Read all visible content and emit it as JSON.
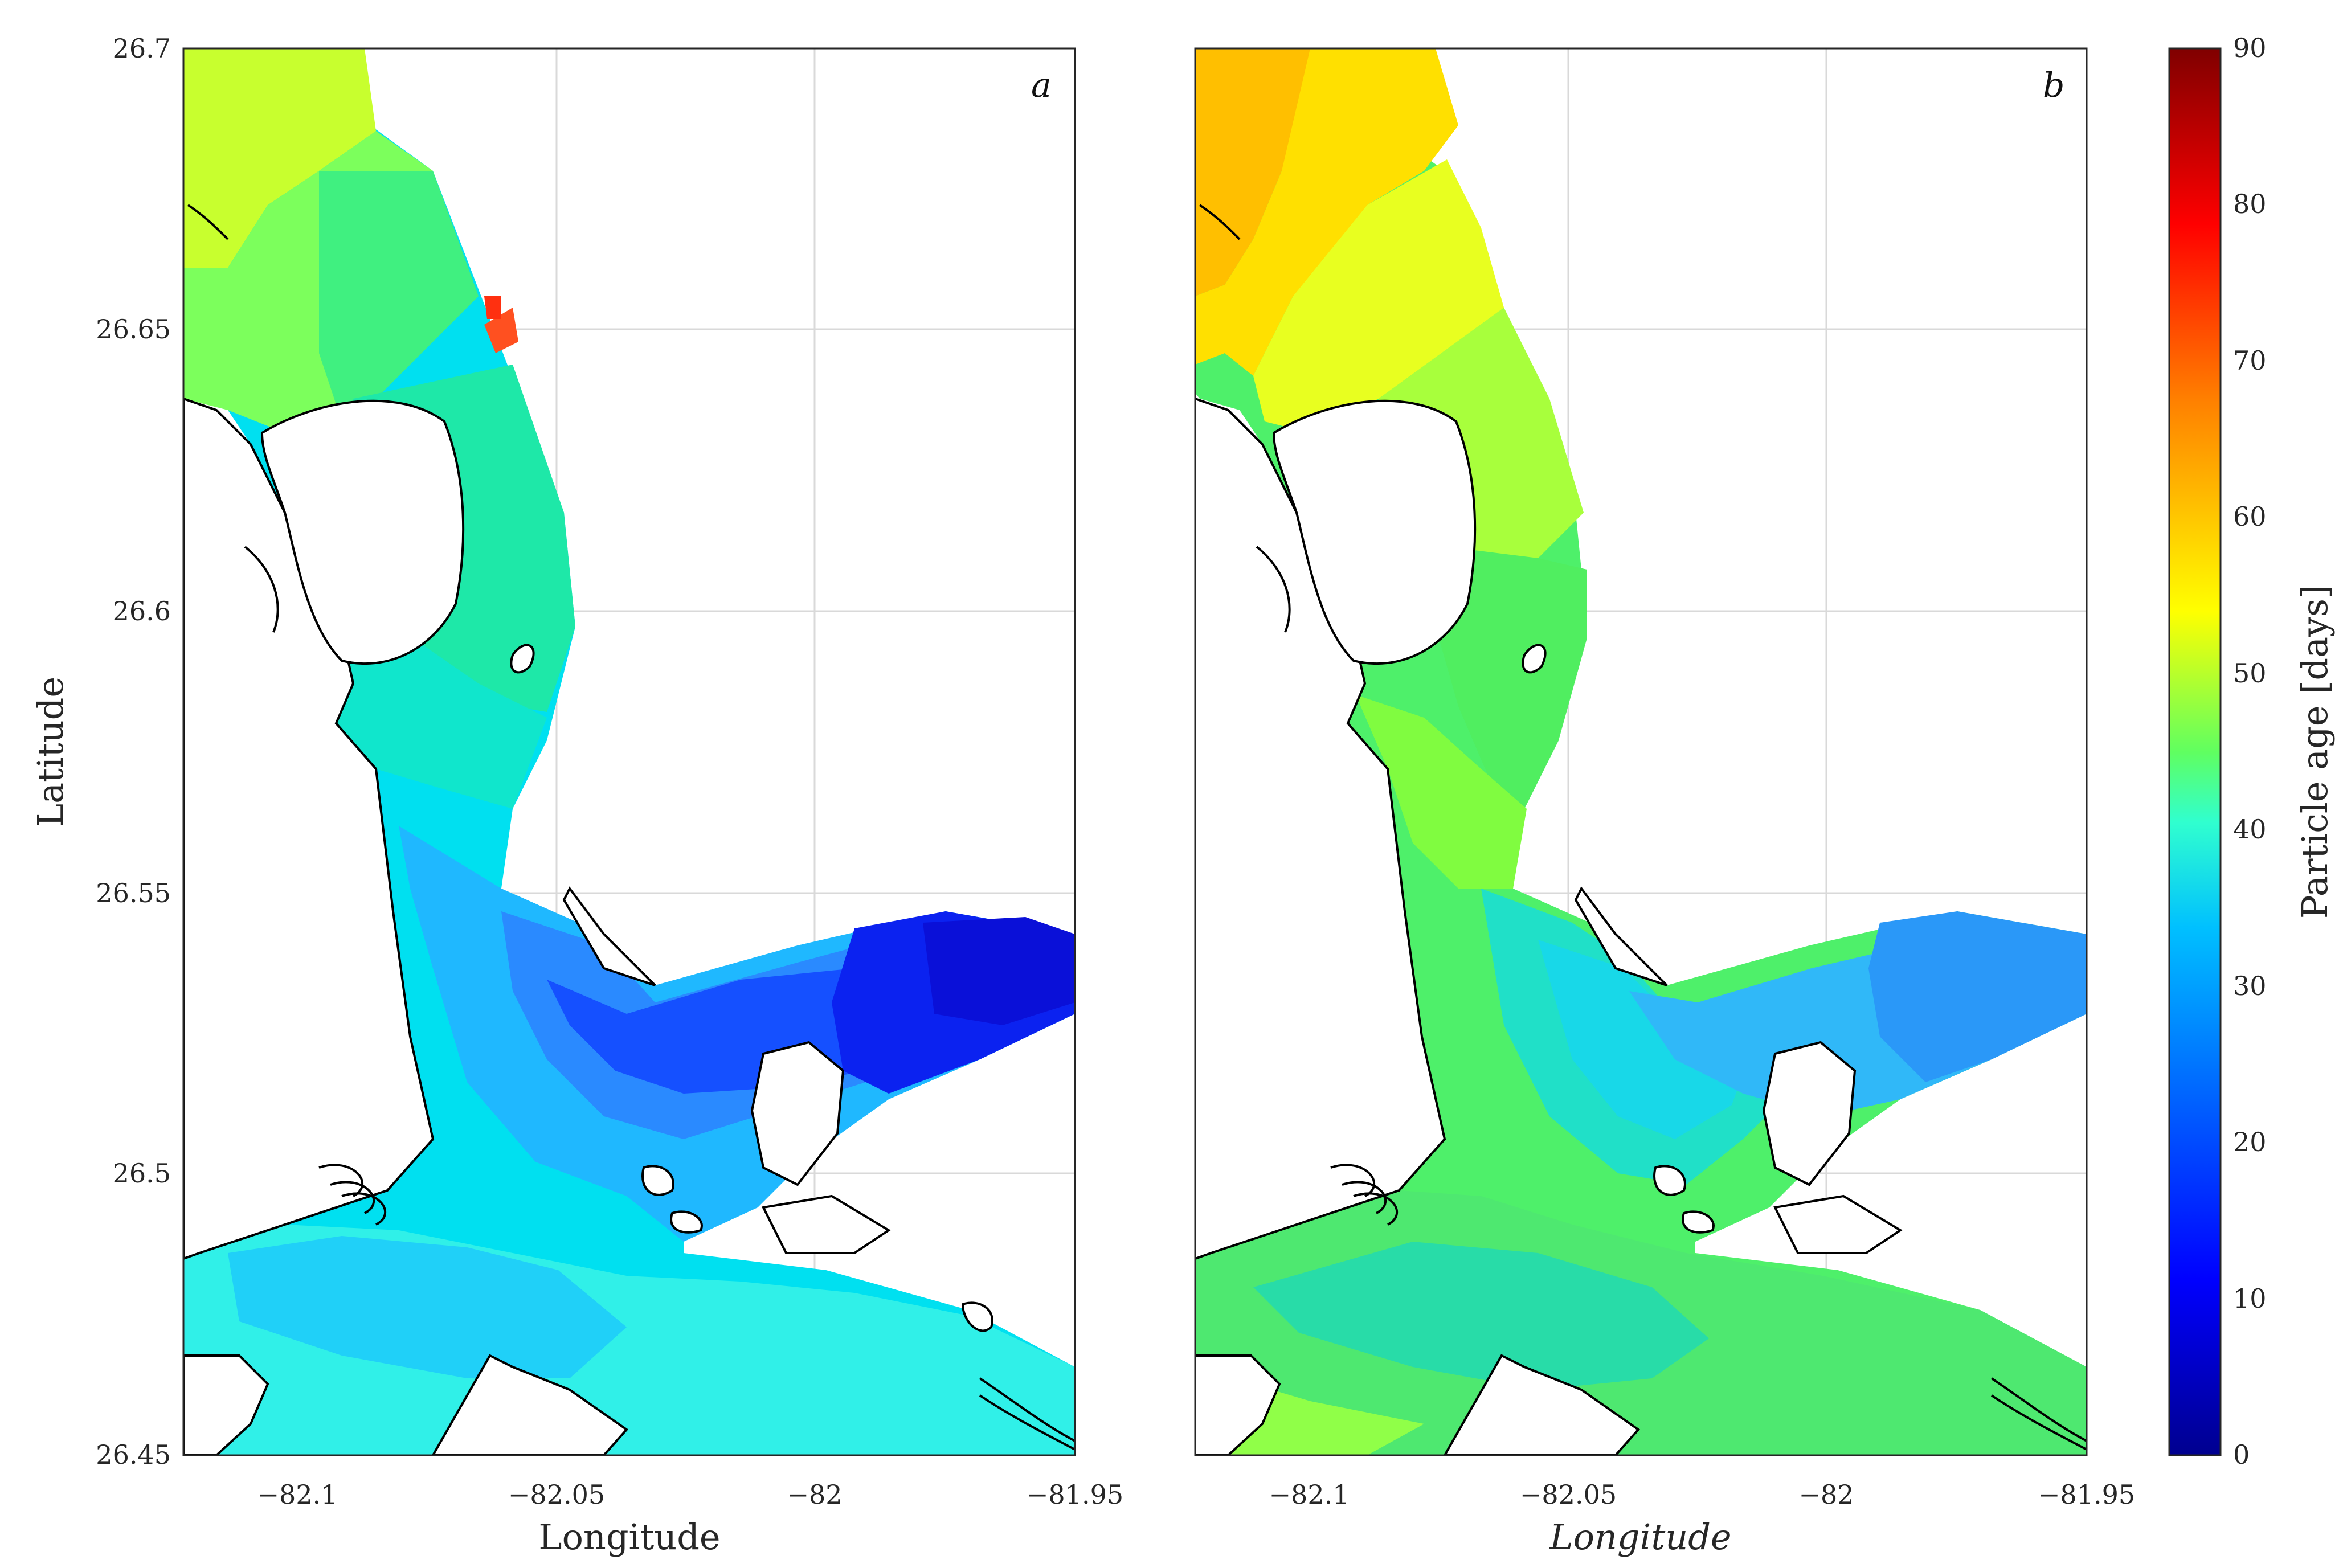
{
  "chart_data": [
    {
      "type": "heatmap",
      "panel_label": "a",
      "xlabel": "Longitude",
      "ylabel": "Latitude",
      "xlim": [
        -82.12,
        -81.95
      ],
      "ylim": [
        26.45,
        26.7
      ],
      "xticks": [
        -82.1,
        -82.05,
        -82.0,
        -81.95
      ],
      "xtick_labels": [
        "−82.1",
        "−82.05",
        "−82",
        "−81.95"
      ],
      "yticks": [
        26.45,
        26.5,
        26.55,
        26.6,
        26.65,
        26.7
      ],
      "ytick_labels": [
        "26.45",
        "26.5",
        "26.55",
        "26.6",
        "26.65",
        "26.7"
      ],
      "grid": true,
      "regions": [
        {
          "lon": -82.1,
          "lat": 26.68,
          "age_days": 50
        },
        {
          "lon": -82.08,
          "lat": 26.65,
          "age_days": 46
        },
        {
          "lon": -82.06,
          "lat": 26.61,
          "age_days": 40
        },
        {
          "lon": -82.07,
          "lat": 26.57,
          "age_days": 36
        },
        {
          "lon": -82.06,
          "lat": 26.53,
          "age_days": 30
        },
        {
          "lon": -82.03,
          "lat": 26.52,
          "age_days": 24
        },
        {
          "lon": -82.0,
          "lat": 26.53,
          "age_days": 16
        },
        {
          "lon": -81.97,
          "lat": 26.535,
          "age_days": 12
        },
        {
          "lon": -82.05,
          "lat": 26.47,
          "age_days": 32
        },
        {
          "lon": -82.07,
          "lat": 26.64,
          "age_days": 75
        }
      ]
    },
    {
      "type": "heatmap",
      "panel_label": "b",
      "xlabel": "Longitude",
      "ylabel": "",
      "xlim": [
        -82.12,
        -81.95
      ],
      "ylim": [
        26.45,
        26.7
      ],
      "xticks": [
        -82.1,
        -82.05,
        -82.0,
        -81.95
      ],
      "xtick_labels": [
        "−82.1",
        "−82.05",
        "−82",
        "−81.95"
      ],
      "yticks": [
        26.45,
        26.5,
        26.55,
        26.6,
        26.65,
        26.7
      ],
      "grid": true,
      "regions": [
        {
          "lon": -82.11,
          "lat": 26.68,
          "age_days": 62
        },
        {
          "lon": -82.09,
          "lat": 26.65,
          "age_days": 57
        },
        {
          "lon": -82.06,
          "lat": 26.61,
          "age_days": 48
        },
        {
          "lon": -82.07,
          "lat": 26.57,
          "age_days": 44
        },
        {
          "lon": -82.05,
          "lat": 26.53,
          "age_days": 36
        },
        {
          "lon": -82.01,
          "lat": 26.53,
          "age_days": 30
        },
        {
          "lon": -81.97,
          "lat": 26.535,
          "age_days": 26
        },
        {
          "lon": -82.05,
          "lat": 26.47,
          "age_days": 42
        }
      ]
    }
  ],
  "colorbar": {
    "label": "Particle age [days]",
    "ticks": [
      0,
      10,
      20,
      30,
      40,
      50,
      60,
      70,
      80,
      90
    ],
    "tick_labels": [
      "0",
      "10",
      "20",
      "30",
      "40",
      "50",
      "60",
      "70",
      "80",
      "90"
    ],
    "range": [
      0,
      90
    ],
    "colormap": [
      "#00008f",
      "#0000ff",
      "#0080ff",
      "#00ffff",
      "#80ff80",
      "#ffff00",
      "#ff8000",
      "#ff0000",
      "#800000"
    ]
  }
}
